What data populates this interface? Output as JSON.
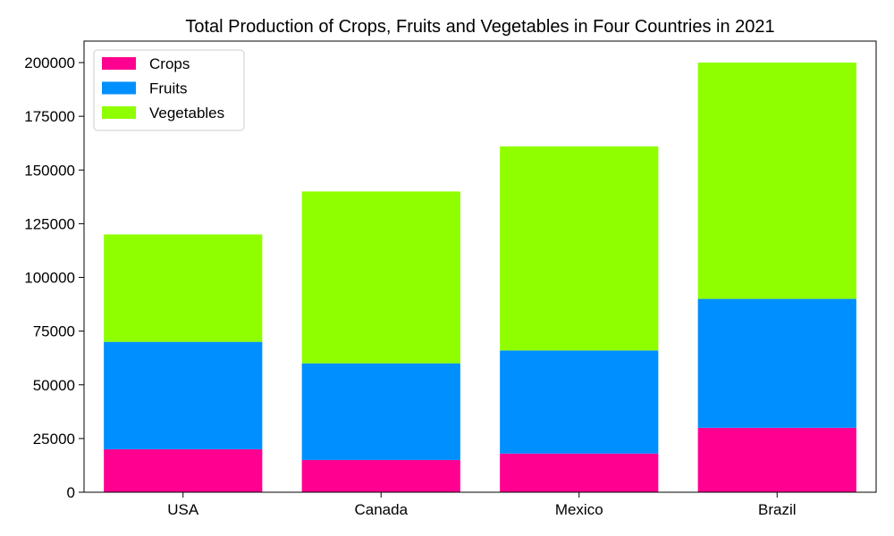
{
  "chart_data": {
    "type": "bar",
    "stacked": true,
    "title": "Total Production of Crops, Fruits and Vegetables in Four Countries in 2021",
    "xlabel": "",
    "ylabel": "",
    "categories": [
      "USA",
      "Canada",
      "Mexico",
      "Brazil"
    ],
    "series": [
      {
        "name": "Crops",
        "color": "#ff0090",
        "values": [
          20000,
          15000,
          18000,
          30000
        ]
      },
      {
        "name": "Fruits",
        "color": "#008fff",
        "values": [
          50000,
          45000,
          48000,
          60000
        ]
      },
      {
        "name": "Vegetables",
        "color": "#8fff00",
        "values": [
          50000,
          80000,
          95000,
          110000
        ]
      }
    ],
    "ylim": [
      0,
      210000
    ],
    "yticks": [
      0,
      25000,
      50000,
      75000,
      100000,
      125000,
      150000,
      175000,
      200000
    ],
    "grid": false,
    "legend_position": "upper-left"
  }
}
